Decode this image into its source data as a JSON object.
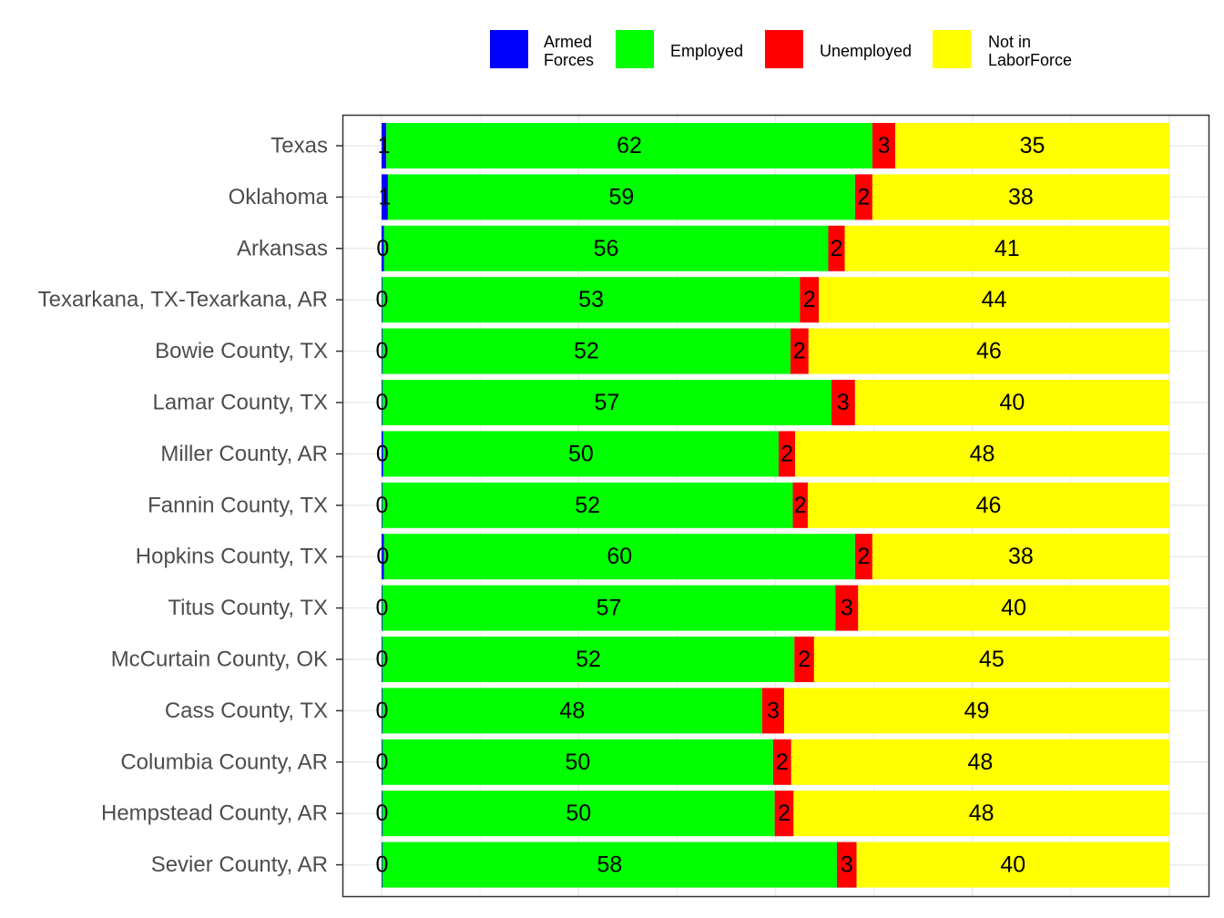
{
  "chart_data": {
    "type": "bar",
    "orientation": "horizontal",
    "stacked": true,
    "title": "",
    "xlabel": "",
    "ylabel": "",
    "xlim": [
      0,
      100
    ],
    "grid": true,
    "legend_position": "top",
    "categories": [
      "Texas",
      "Oklahoma",
      "Arkansas",
      "Texarkana, TX-Texarkana, AR",
      "Bowie County, TX",
      "Lamar County, TX",
      "Miller County, AR",
      "Fannin County, TX",
      "Hopkins County, TX",
      "Titus County, TX",
      "McCurtain County, OK",
      "Cass County, TX",
      "Columbia County, AR",
      "Hempstead County, AR",
      "Sevier County, AR"
    ],
    "series": [
      {
        "name": "Armed Forces",
        "legend_lines": [
          "Armed",
          "Forces"
        ],
        "color": "#0000ff",
        "values": [
          0.6,
          0.8,
          0.3,
          0.1,
          0.1,
          0.1,
          0.2,
          0.1,
          0.3,
          0.1,
          0.1,
          0.1,
          0.1,
          0.1,
          0.1
        ],
        "labels": [
          "1",
          "1",
          "0",
          "0",
          "0",
          "0",
          "0",
          "0",
          "0",
          "0",
          "0",
          "0",
          "0",
          "0",
          "0"
        ]
      },
      {
        "name": "Employed",
        "legend_lines": [
          "Employed"
        ],
        "color": "#00ff00",
        "values": [
          61.7,
          59.3,
          56.4,
          53.0,
          51.8,
          57.0,
          50.2,
          52.1,
          59.8,
          57.5,
          52.3,
          48.2,
          49.6,
          49.8,
          57.7
        ],
        "labels": [
          "62",
          "59",
          "56",
          "53",
          "52",
          "57",
          "50",
          "52",
          "60",
          "57",
          "52",
          "48",
          "50",
          "50",
          "58"
        ]
      },
      {
        "name": "Unemployed",
        "legend_lines": [
          "Unemployed"
        ],
        "color": "#ff0000",
        "values": [
          2.9,
          2.2,
          2.1,
          2.4,
          2.3,
          3.0,
          2.1,
          1.9,
          2.2,
          2.9,
          2.5,
          2.8,
          2.3,
          2.4,
          2.5
        ],
        "labels": [
          "3",
          "2",
          "2",
          "2",
          "2",
          "3",
          "2",
          "2",
          "2",
          "3",
          "2",
          "3",
          "2",
          "2",
          "3"
        ]
      },
      {
        "name": "Not in LaborForce",
        "legend_lines": [
          "Not in",
          "LaborForce"
        ],
        "color": "#ffff00",
        "values": [
          34.8,
          37.7,
          41.2,
          44.5,
          45.8,
          39.9,
          47.5,
          45.9,
          37.7,
          39.5,
          45.1,
          48.9,
          48.0,
          47.7,
          39.7
        ],
        "labels": [
          "35",
          "38",
          "41",
          "44",
          "46",
          "40",
          "48",
          "46",
          "38",
          "40",
          "45",
          "49",
          "48",
          "48",
          "40"
        ]
      }
    ]
  }
}
